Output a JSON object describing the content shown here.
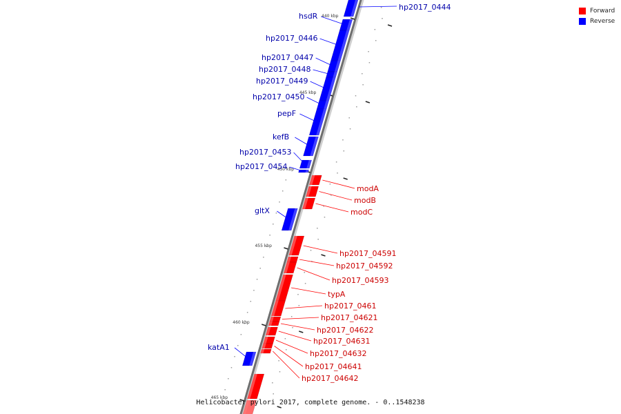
{
  "legend": [
    {
      "name": "Forward",
      "color": "#ff0000"
    },
    {
      "name": "Reverse",
      "color": "#0000ff"
    }
  ],
  "caption": "Helicobacter pylori 2017, complete genome. - 0..1548238",
  "ticks": [
    "440 kbp",
    "445 kbp",
    "450 kbp",
    "455 kbp",
    "460 kbp",
    "465 kbp"
  ],
  "genes_reverse": [
    "hp2017_0444",
    "hsdR",
    "hp2017_0446",
    "hp2017_0447",
    "hp2017_0448",
    "hp2017_0449",
    "hp2017_0450",
    "pepF",
    "kefB",
    "hp2017_0453",
    "hp2017_0454",
    "gltX",
    "katA1"
  ],
  "genes_forward": [
    "modA",
    "modB",
    "modC",
    "hp2017_04591",
    "hp2017_04592",
    "hp2017_04593",
    "typA",
    "hp2017_0461",
    "hp2017_04621",
    "hp2017_04622",
    "hp2017_04631",
    "hp2017_04632",
    "hp2017_04641",
    "hp2017_04642"
  ]
}
